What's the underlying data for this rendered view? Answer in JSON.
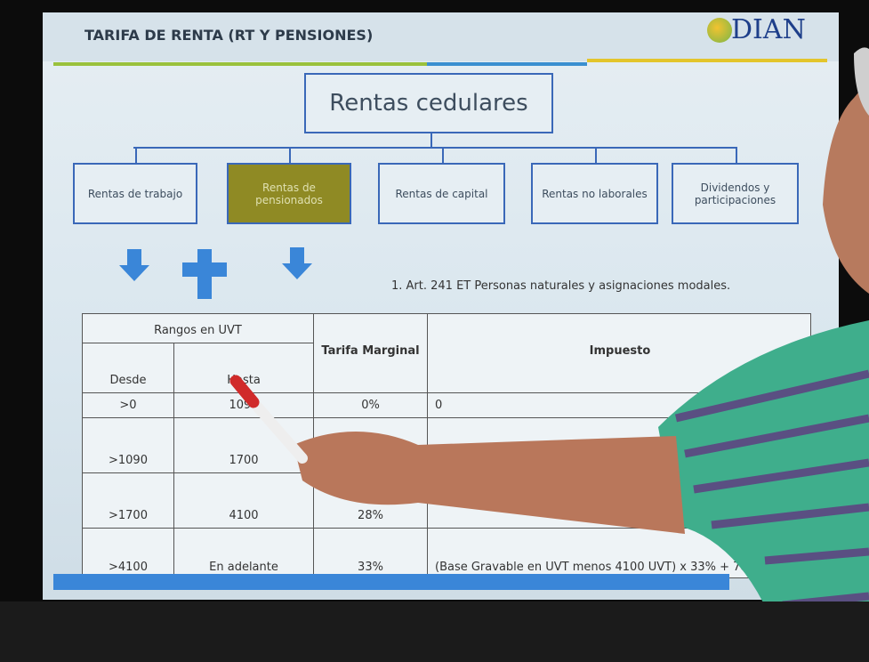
{
  "header": {
    "title": "TARIFA DE RENTA (RT Y PENSIONES)",
    "logo": "DIAN"
  },
  "diagram": {
    "root": "Rentas cedulares",
    "children": [
      "Rentas de trabajo",
      "Rentas de pensionados",
      "Rentas de capital",
      "Rentas no laborales",
      "Dividendos y participaciones"
    ]
  },
  "note": "1. Art. 241 ET Personas naturales y asignaciones modales.",
  "table": {
    "group_header": "Rangos en UVT",
    "headers": [
      "Desde",
      "Hasta",
      "Tarifa Marginal",
      "Impuesto"
    ],
    "rows": [
      {
        "desde": ">0",
        "hasta": "1090",
        "tarifa": "0%",
        "impuesto": "0"
      },
      {
        "desde": ">1090",
        "hasta": "1700"
      },
      {
        "desde": ">1700",
        "hasta": "4100",
        "tarifa": "28%"
      },
      {
        "desde": ">4100",
        "hasta": "En adelante",
        "tarifa": "33%",
        "impuesto": "(Base Gravable en UVT menos 4100 UVT) x 33% + 788 UVT"
      }
    ]
  }
}
